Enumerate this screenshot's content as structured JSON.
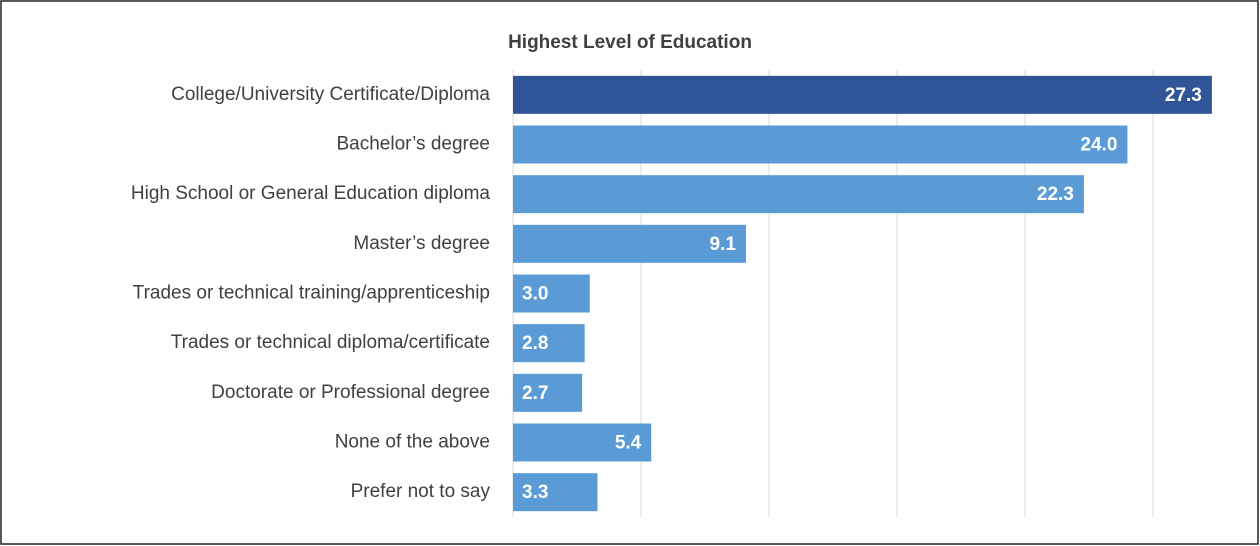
{
  "chart_data": {
    "type": "hbar",
    "title": "Highest Level of Education",
    "categories": [
      "College/University Certificate/Diploma",
      "Bachelor’s degree",
      "High School or General Education diploma",
      "Master’s degree",
      "Trades or technical training/apprenticeship",
      "Trades or technical diploma/certificate",
      "Doctorate or Professional degree",
      "None of the above",
      "Prefer not to say"
    ],
    "values": [
      27.3,
      24.0,
      22.3,
      9.1,
      3.0,
      2.8,
      2.7,
      5.4,
      3.3
    ],
    "value_labels": [
      "27.3",
      "24.0",
      "22.3",
      "9.1",
      "3.0",
      "2.8",
      "2.7",
      "5.4",
      "3.3"
    ],
    "colors": [
      "#2f5597",
      "#5b9bd5",
      "#5b9bd5",
      "#5b9bd5",
      "#5b9bd5",
      "#5b9bd5",
      "#5b9bd5",
      "#5b9bd5",
      "#5b9bd5"
    ],
    "xlim": [
      0,
      28
    ],
    "xticks": [
      0,
      5,
      10,
      15,
      20,
      25
    ],
    "grid": true
  }
}
